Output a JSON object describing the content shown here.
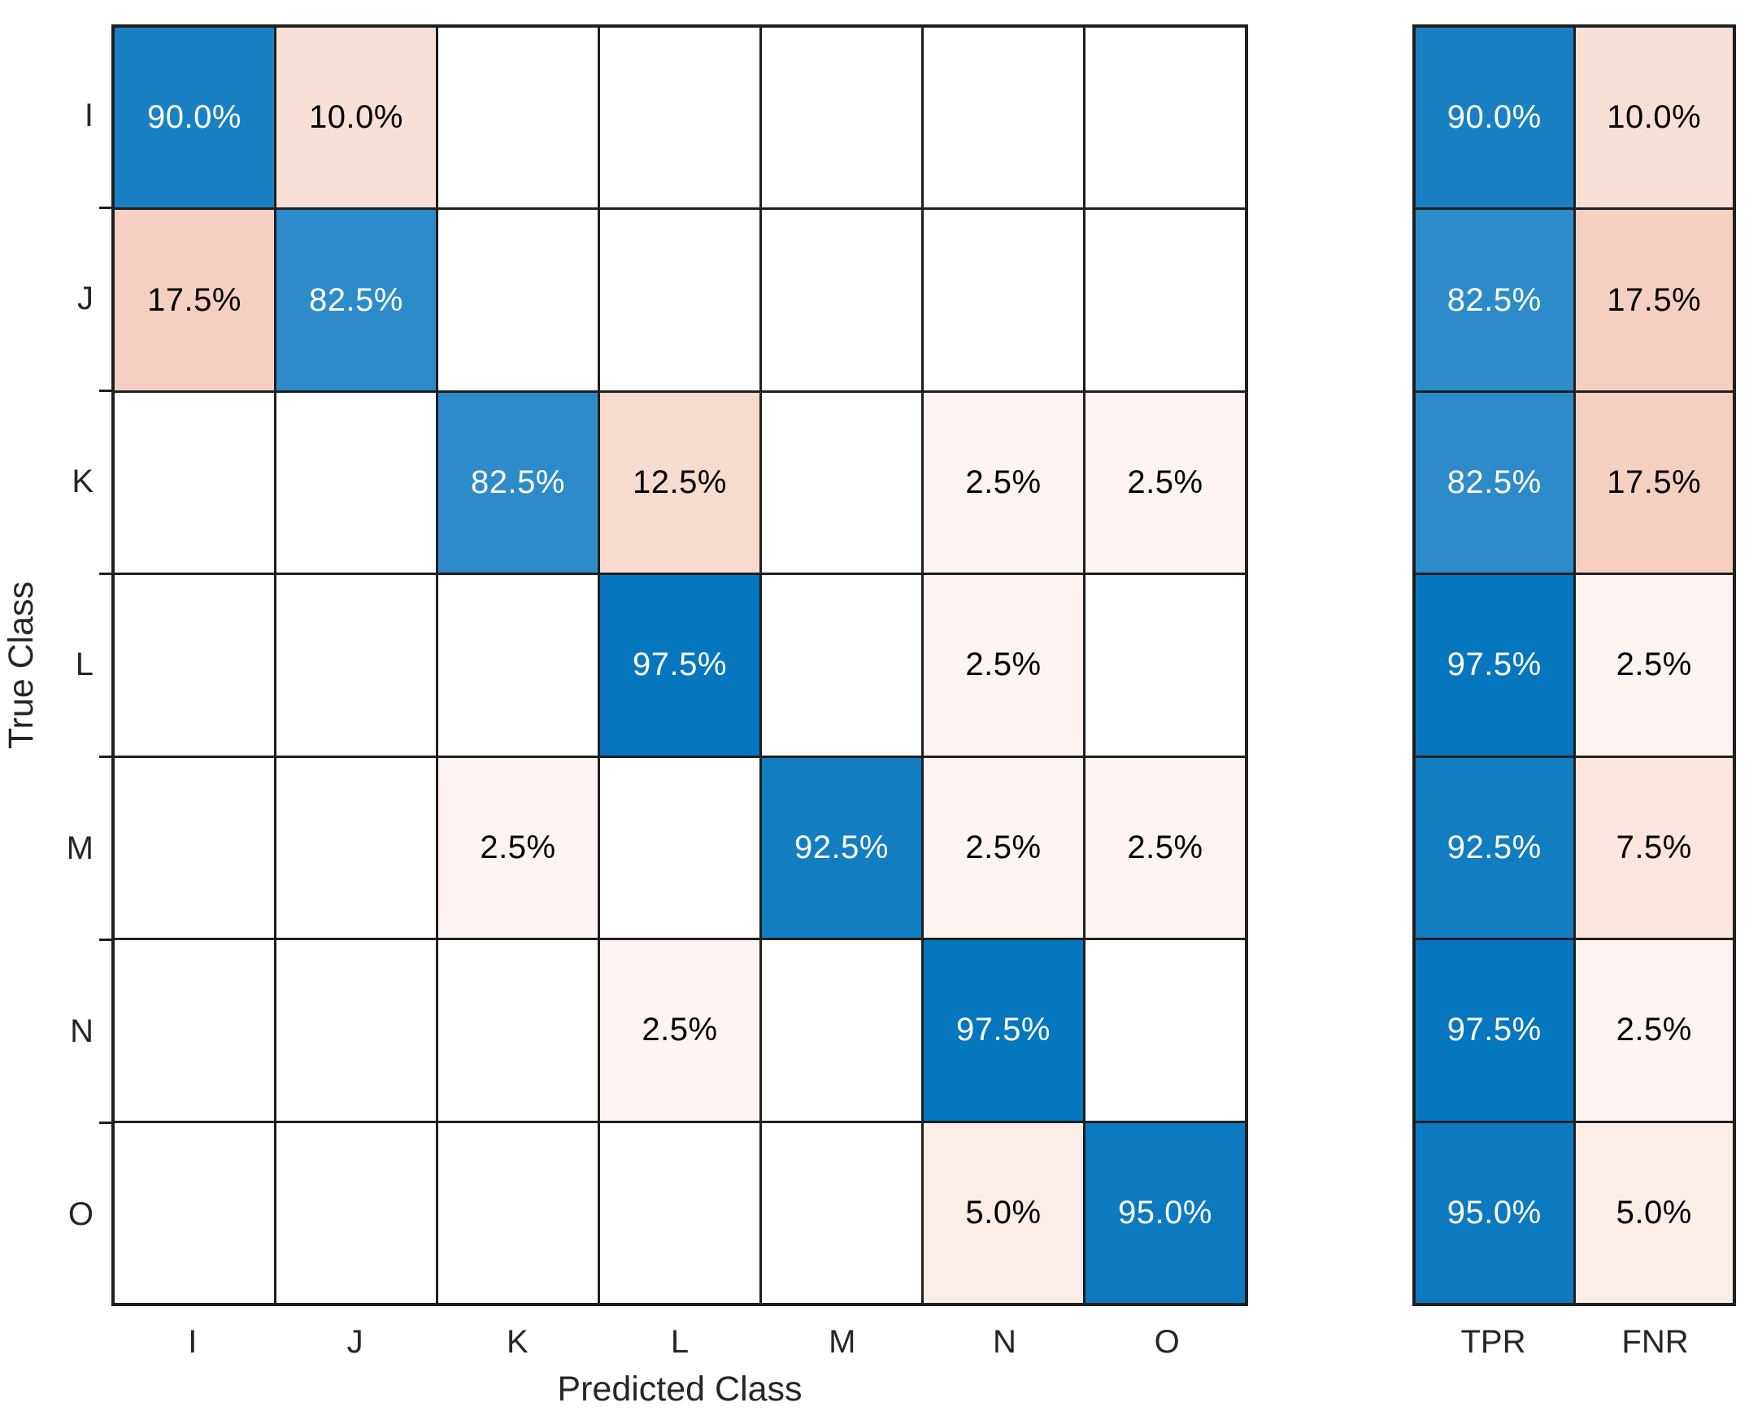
{
  "chart_data": {
    "type": "heatmap",
    "subtype": "confusion-matrix",
    "normalization": "row-normalized-percent",
    "xlabel": "Predicted Class",
    "ylabel": "True Class",
    "classes": [
      "I",
      "J",
      "K",
      "L",
      "M",
      "N",
      "O"
    ],
    "x_tick_labels": [
      "I",
      "J",
      "K",
      "L",
      "M",
      "N",
      "O"
    ],
    "y_tick_labels": [
      "I",
      "J",
      "K",
      "L",
      "M",
      "N",
      "O"
    ],
    "matrix_percent": [
      [
        90.0,
        10.0,
        0,
        0,
        0,
        0,
        0
      ],
      [
        17.5,
        82.5,
        0,
        0,
        0,
        0,
        0
      ],
      [
        0,
        0,
        82.5,
        12.5,
        0,
        2.5,
        2.5
      ],
      [
        0,
        0,
        0,
        97.5,
        0,
        2.5,
        0
      ],
      [
        0,
        0,
        2.5,
        0,
        92.5,
        2.5,
        2.5
      ],
      [
        0,
        0,
        0,
        2.5,
        0,
        97.5,
        0
      ],
      [
        0,
        0,
        0,
        0,
        0,
        5.0,
        95.0
      ]
    ],
    "cell_label_format": "value.toFixed(1) + '%', blank when 0",
    "row_summary": {
      "columns": [
        "TPR",
        "FNR"
      ],
      "tpr_percent": [
        90.0,
        82.5,
        82.5,
        97.5,
        92.5,
        97.5,
        95.0
      ],
      "fnr_percent": [
        10.0,
        17.5,
        17.5,
        2.5,
        7.5,
        2.5,
        5.0
      ]
    },
    "colors": {
      "diagonal_base": "#0072BD",
      "off_diagonal_base": "#D95319",
      "empty_cell": "#FFFFFF",
      "grid_line": "#1F1F1F",
      "text_on_diagonal": "#FFFFFF",
      "text_on_off_diagonal": "#000000",
      "axis_text": "#262626"
    },
    "layout": {
      "legend": false,
      "summary_panel_position": "right",
      "gridlines": true
    }
  }
}
